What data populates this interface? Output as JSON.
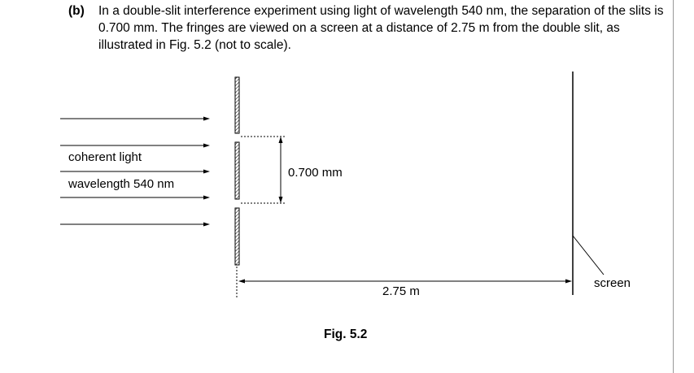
{
  "question": {
    "label": "(b)",
    "text": "In a double-slit interference experiment using light of wavelength 540 nm, the separation of the slits is 0.700 mm. The fringes are viewed on a screen at a distance of 2.75 m from the double slit, as illustrated in Fig. 5.2 (not to scale)."
  },
  "diagram": {
    "light_label_1": "coherent light",
    "light_label_2": "wavelength 540 nm",
    "slit_separation_label": "0.700 mm",
    "distance_label": "2.75 m",
    "screen_label": "screen",
    "figure_caption": "Fig. 5.2"
  }
}
